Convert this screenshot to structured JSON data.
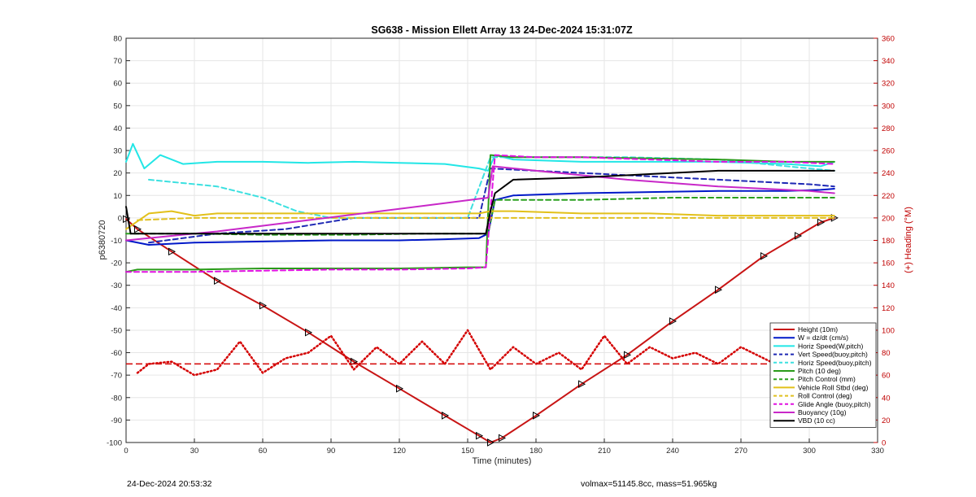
{
  "footer": {
    "timestamp": "24-Dec-2024 20:53:32",
    "summary": "volmax=51145.8cc, mass=51.965kg"
  },
  "chart_data": {
    "type": "line",
    "title": "SG638 - Mission Ellett Array 13 24-Dec-2024 15:31:07Z",
    "xlabel": "Time (minutes)",
    "ylabel": "p6380720",
    "y2label": "(+) Heading (°M)",
    "xlim": [
      0,
      330
    ],
    "ylim": [
      -100,
      80
    ],
    "y2lim": [
      0,
      360
    ],
    "xticks": [
      0,
      30,
      60,
      90,
      120,
      150,
      180,
      210,
      240,
      270,
      300,
      330
    ],
    "yticks": [
      -100,
      -90,
      -80,
      -70,
      -60,
      -50,
      -40,
      -30,
      -20,
      -10,
      0,
      10,
      20,
      30,
      40,
      50,
      60,
      70,
      80
    ],
    "y2ticks": [
      0,
      20,
      40,
      60,
      80,
      100,
      120,
      140,
      160,
      180,
      200,
      220,
      240,
      260,
      280,
      300,
      320,
      340,
      360
    ],
    "grid": true,
    "legend_position": "bottom-right",
    "series": [
      {
        "name": "Height (10m)",
        "color": "#c81414",
        "style": "solid",
        "marker": "triangle",
        "x": [
          0,
          5,
          20,
          40,
          60,
          80,
          100,
          120,
          140,
          155,
          160,
          165,
          180,
          200,
          220,
          240,
          260,
          280,
          295,
          305,
          311
        ],
        "y": [
          -0.5,
          -5,
          -15,
          -28,
          -39,
          -51,
          -64,
          -76,
          -88,
          -97,
          -100,
          -98,
          -88,
          -74,
          -61,
          -46,
          -32,
          -17,
          -8,
          -2,
          0
        ]
      },
      {
        "name": "W = dz/dt (cm/s)",
        "color": "#0018c8",
        "style": "solid",
        "x": [
          0,
          10,
          30,
          60,
          90,
          120,
          140,
          155,
          159,
          162,
          170,
          200,
          230,
          260,
          290,
          305,
          311
        ],
        "y": [
          -10,
          -12,
          -11,
          -10.5,
          -10,
          -10,
          -9.5,
          -9,
          -7,
          8,
          10,
          11,
          11.5,
          12,
          12,
          12.5,
          13
        ]
      },
      {
        "name": "Horiz Speed(W,pitch)",
        "color": "#22e6e6",
        "style": "solid",
        "x": [
          0,
          3,
          8,
          15,
          25,
          40,
          60,
          80,
          100,
          120,
          140,
          155,
          159,
          162,
          170,
          200,
          230,
          260,
          290,
          305,
          311
        ],
        "y": [
          25,
          33,
          22,
          28,
          24,
          25,
          25,
          24.5,
          25,
          24.5,
          24,
          22,
          21,
          28,
          26,
          25,
          25,
          25,
          24,
          23,
          25
        ]
      },
      {
        "name": "Vert Speed(buoy,pitch)",
        "color": "#1e28b4",
        "style": "dashed",
        "x": [
          10,
          40,
          70,
          100,
          130,
          155,
          160,
          180,
          220,
          260,
          300,
          311
        ],
        "y": [
          -11,
          -7,
          -5,
          0,
          0,
          0,
          22,
          21,
          19,
          17,
          15,
          14
        ]
      },
      {
        "name": "Horiz Speed(buoy,pitch)",
        "color": "#3ce0e0",
        "style": "dashed",
        "x": [
          10,
          40,
          60,
          75,
          90,
          110,
          150,
          160,
          180,
          220,
          260,
          300,
          311
        ],
        "y": [
          17,
          14,
          9,
          3,
          0,
          0,
          0,
          27,
          27,
          27,
          26,
          22,
          21
        ]
      },
      {
        "name": "Pitch (10 deg)",
        "color": "#2a9a1a",
        "style": "solid",
        "x": [
          0,
          5,
          30,
          60,
          90,
          120,
          150,
          158,
          160,
          170,
          200,
          230,
          260,
          290,
          311
        ],
        "y": [
          -24,
          -23,
          -23,
          -22.5,
          -22.5,
          -22.5,
          -22,
          -22,
          28,
          27,
          27,
          26.5,
          26,
          25,
          25
        ]
      },
      {
        "name": "Pitch Control (mm)",
        "color": "#2aa01e",
        "style": "dashed",
        "x": [
          0,
          30,
          60,
          100,
          130,
          159,
          162,
          200,
          240,
          280,
          311
        ],
        "y": [
          -7,
          -7,
          -7.5,
          -7.5,
          -7,
          -7,
          8,
          8,
          9,
          9,
          9
        ]
      },
      {
        "name": "Vehicle Roll Stbd (deg)",
        "color": "#e2c01a",
        "style": "solid",
        "x": [
          0,
          10,
          20,
          25,
          30,
          40,
          60,
          80,
          100,
          120,
          140,
          155,
          160,
          170,
          200,
          230,
          260,
          290,
          311
        ],
        "y": [
          -5,
          2,
          3,
          2,
          1,
          2,
          2,
          2,
          2,
          2,
          2,
          2,
          3,
          3,
          2,
          2,
          1,
          1,
          1
        ]
      },
      {
        "name": "Roll Control (deg)",
        "color": "#e0c020",
        "style": "dashed",
        "x": [
          5,
          30,
          60,
          90,
          120,
          155,
          160,
          190,
          220,
          260,
          311
        ],
        "y": [
          -1,
          0,
          0,
          0,
          0,
          0,
          0,
          0,
          0,
          0,
          0
        ]
      },
      {
        "name": "Glide Angle (buoy,pitch)",
        "color": "#e010e0",
        "style": "dashed",
        "x": [
          0,
          10,
          30,
          60,
          90,
          120,
          150,
          158,
          162,
          180,
          200,
          230,
          260,
          290,
          311
        ],
        "y": [
          -24,
          -24,
          -24,
          -23.5,
          -23,
          -23,
          -22.5,
          -22,
          28,
          27,
          27,
          26,
          25,
          25,
          24
        ]
      },
      {
        "name": "Buoyancy (10g)",
        "color": "#c828c8",
        "style": "solid",
        "x": [
          0,
          40,
          80,
          120,
          159,
          161,
          180,
          220,
          260,
          300,
          311
        ],
        "y": [
          -10,
          -6,
          -1,
          4,
          9,
          23,
          21,
          17,
          14,
          12,
          11
        ]
      },
      {
        "name": "VBD (10 cc)",
        "color": "#000000",
        "style": "solid",
        "x": [
          0,
          2,
          60,
          120,
          158,
          160,
          162,
          170,
          200,
          230,
          260,
          290,
          311
        ],
        "y": [
          5,
          -7,
          -7,
          -7,
          -7,
          3,
          11,
          17,
          18,
          19.5,
          21,
          21,
          21
        ]
      },
      {
        "name": "Heading",
        "color": "#d40000",
        "style": "dotted",
        "axis": "right",
        "legend": false,
        "x": [
          5,
          10,
          20,
          30,
          40,
          50,
          60,
          70,
          80,
          90,
          100,
          110,
          120,
          130,
          140,
          150,
          160,
          170,
          180,
          190,
          200,
          210,
          220,
          230,
          240,
          250,
          260,
          270,
          280,
          290,
          300,
          310
        ],
        "y": [
          62,
          70,
          72,
          60,
          65,
          90,
          62,
          75,
          80,
          95,
          65,
          85,
          70,
          90,
          70,
          100,
          65,
          85,
          70,
          80,
          65,
          95,
          70,
          85,
          75,
          80,
          70,
          85,
          75,
          65,
          80,
          70
        ]
      }
    ],
    "reference_line": {
      "axis": "right",
      "value": 70,
      "color": "#d40000",
      "style": "dashed"
    }
  }
}
